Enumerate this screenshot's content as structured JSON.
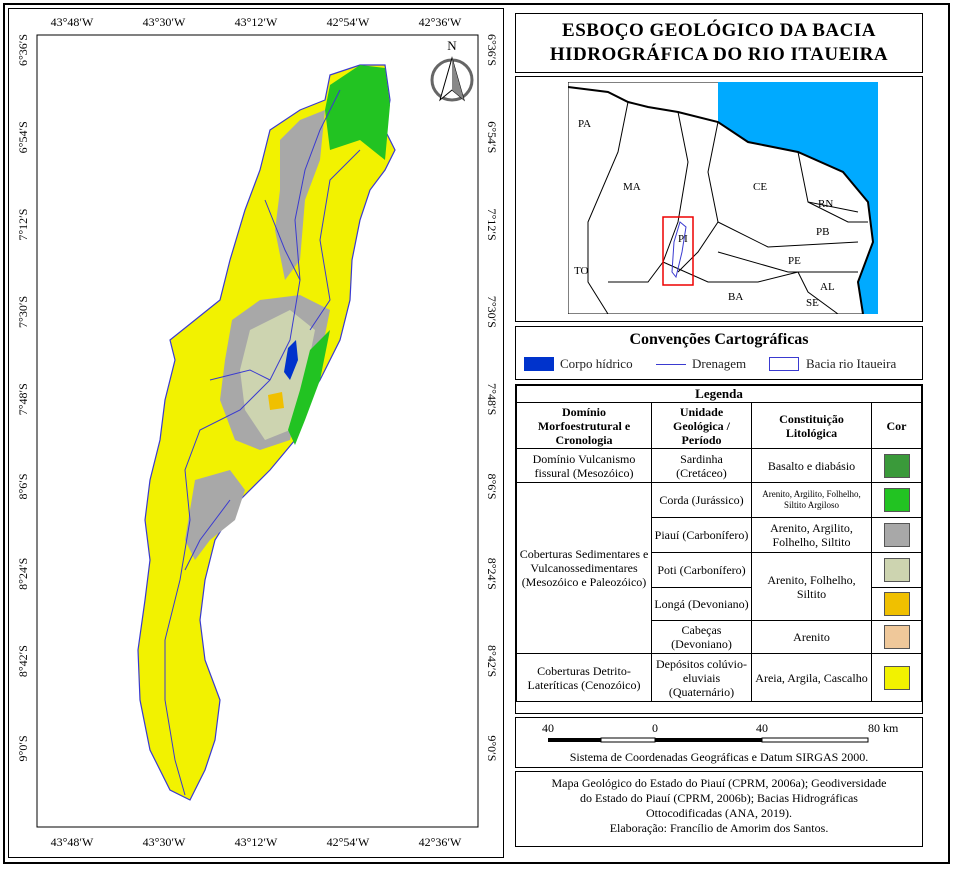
{
  "map": {
    "north": "N",
    "lon_labels": [
      "43°48′W",
      "43°30′W",
      "43°12′W",
      "42°54′W",
      "42°36′W"
    ],
    "lat_labels": [
      "6°36′S",
      "6°54′S",
      "7°12′S",
      "7°30′S",
      "7°48′S",
      "8°6′S",
      "8°24′S",
      "8°42′S",
      "9°0′S"
    ]
  },
  "title": [
    "ESBOÇO GEOLÓGICO DA BACIA",
    "HIDROGRÁFICA DO RIO ITAUEIRA"
  ],
  "inset": {
    "labels": [
      "PA",
      "MA",
      "CE",
      "RN",
      "PB",
      "PE",
      "AL",
      "SE",
      "BA",
      "TO",
      "PI"
    ]
  },
  "conventions": {
    "title": "Convenções Cartográficas",
    "items": [
      "Corpo hídrico",
      "Drenagem",
      "Bacia rio Itaueira"
    ]
  },
  "legend": {
    "title": "Legenda",
    "headers": [
      "Domínio Morfoestrutural e Cronologia",
      "Unidade Geológica / Período",
      "Constituição Litológica",
      "Cor"
    ],
    "rows": [
      {
        "domain": "Domínio Vulcanismo fissural (Mesozóico)",
        "unit": "Sardinha (Cretáceo)",
        "lithology": "Basalto e diabásio",
        "color": "#3a9a3a"
      },
      {
        "domain": "Coberturas Sedimentares e Vulcanossedimentares (Mesozóico e Paleozóico)",
        "unit": "Corda (Jurássico)",
        "lithology": "Arenito, Argilito, Folhelho, Siltito Argiloso",
        "color": "#22c322"
      },
      {
        "unit": "Piauí (Carbonífero)",
        "lithology": "Arenito, Argilito, Folhelho, Siltito",
        "color": "#a8a8a8"
      },
      {
        "unit": "Poti (Carbonífero)",
        "lithology": "Arenito, Folhelho, Siltito",
        "color": "#cdd4b0"
      },
      {
        "unit": "Longá (Devoniano)",
        "color": "#f0c000"
      },
      {
        "unit": "Cabeças (Devoniano)",
        "lithology": "Arenito",
        "color": "#efc89a"
      },
      {
        "domain": "Coberturas Detrito-Lateríticas (Cenozóico)",
        "unit": "Depósitos colúvio-eluviais (Quaternário)",
        "lithology": "Areia, Argila, Cascalho",
        "color": "#f2f200"
      }
    ]
  },
  "scale": {
    "ticks": [
      "40",
      "0",
      "40",
      "80 km"
    ],
    "note": "Sistema de Coordenadas Geográficas e Datum SIRGAS 2000."
  },
  "sources": [
    "Mapa Geológico do Estado do Piauí (CPRM, 2006a); Geodiversidade",
    "do Estado do Piauí (CPRM, 2006b); Bacias Hidrográficas",
    "Ottocodificadas (ANA, 2019).",
    "Elaboração: Francílio de Amorim dos Santos."
  ]
}
